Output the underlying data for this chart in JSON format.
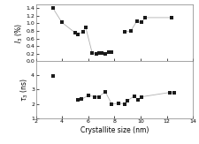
{
  "I3_x": [
    3.3,
    4.0,
    5.0,
    5.2,
    5.6,
    5.8,
    6.3,
    6.6,
    6.8,
    7.0,
    7.3,
    7.55,
    7.75,
    8.8,
    9.25,
    9.7,
    10.05,
    10.35,
    12.35
  ],
  "I3_y": [
    1.4,
    1.02,
    0.75,
    0.7,
    0.78,
    0.9,
    0.22,
    0.2,
    0.22,
    0.22,
    0.2,
    0.25,
    0.25,
    0.78,
    0.8,
    1.05,
    1.02,
    1.15,
    1.15
  ],
  "tau3_x": [
    3.3,
    5.2,
    5.5,
    6.0,
    6.5,
    6.8,
    7.3,
    7.8,
    8.3,
    8.8,
    9.0,
    9.5,
    9.8,
    10.1,
    12.2,
    12.55
  ],
  "tau3_y": [
    3.95,
    2.28,
    2.32,
    2.6,
    2.5,
    2.5,
    2.85,
    1.98,
    2.05,
    2.0,
    2.22,
    2.55,
    2.28,
    2.5,
    2.8,
    2.78
  ],
  "marker_color": "#1a1a1a",
  "line_color": "#b0b0b0",
  "xlim": [
    2,
    14
  ],
  "I3_ylim": [
    0.0,
    1.5
  ],
  "tau3_ylim": [
    1.0,
    5.0
  ],
  "I3_yticks": [
    0.0,
    0.2,
    0.4,
    0.6,
    0.8,
    1.0,
    1.2,
    1.4
  ],
  "tau3_yticks": [
    1,
    2,
    3,
    4
  ],
  "xticks": [
    2,
    4,
    6,
    8,
    10,
    12,
    14
  ],
  "xlabel": "Crystallite size (nm)",
  "I3_ylabel": "$I_3$ (%)",
  "tau3_ylabel": "$\\tau_3$ (ns)"
}
